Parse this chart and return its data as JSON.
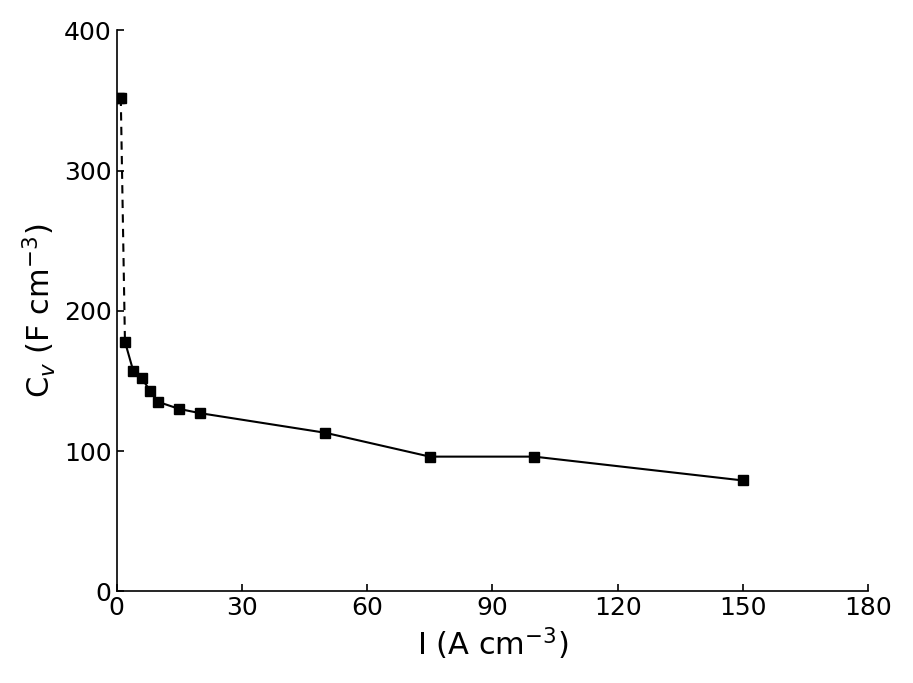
{
  "x": [
    0.5,
    1,
    2,
    4,
    6,
    8,
    10,
    15,
    20,
    50,
    75,
    100,
    150
  ],
  "y": [
    352,
    352,
    178,
    157,
    152,
    143,
    135,
    130,
    127,
    113,
    96,
    96,
    79
  ],
  "marker": "s",
  "marker_color": "#000000",
  "marker_size": 7,
  "line_color": "#000000",
  "line_width": 1.5,
  "xlabel": "I (A cm$^{-3}$)",
  "ylabel": "C$_v$ (F cm$^{-3}$)",
  "xlim": [
    0,
    180
  ],
  "ylim": [
    0,
    400
  ],
  "xticks": [
    0,
    30,
    60,
    90,
    120,
    150,
    180
  ],
  "yticks": [
    0,
    100,
    200,
    300,
    400
  ],
  "background_color": "#ffffff",
  "tick_fontsize": 18,
  "label_fontsize": 22,
  "figsize": [
    9.13,
    6.83
  ],
  "dpi": 100,
  "seg_solid1_end_idx": 1,
  "seg_dashed_end_idx": 2,
  "seg_solid2_start_idx": 2
}
